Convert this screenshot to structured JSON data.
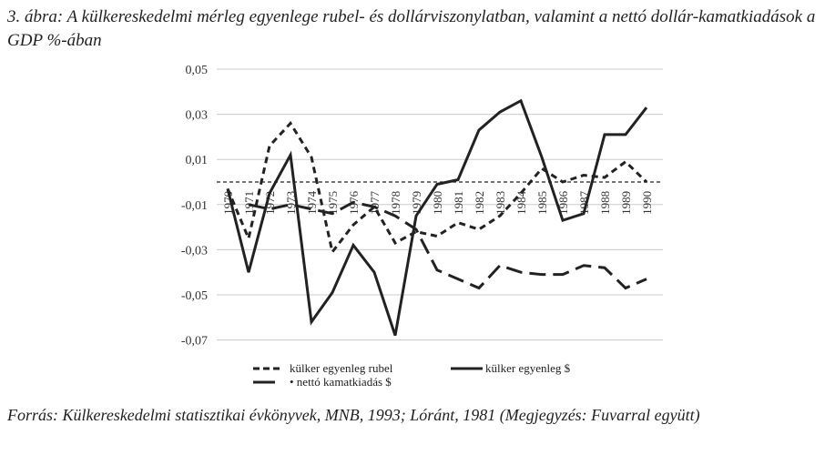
{
  "title": "3. ábra: A külkereskedelmi mérleg egyenlege rubel- és dollárviszonylatban, valamint a nettó dollár-kamatkiadások a GDP %-ában",
  "source": "Forrás: Külkereskedelmi statisztikai évkönyvek, MNB, 1993; Lóránt, 1981 (Megjegyzés: Fuvarral együtt)",
  "chart_data": {
    "type": "line",
    "title": "3. ábra: A külkereskedelmi mérleg egyenlege rubel- és dollárviszonylatban, valamint a nettó dollár-kamatkiadások a GDP %-ában",
    "x": [
      1970,
      1971,
      1972,
      1973,
      1974,
      1975,
      1976,
      1977,
      1978,
      1979,
      1980,
      1981,
      1982,
      1983,
      1984,
      1985,
      1986,
      1987,
      1988,
      1989,
      1990
    ],
    "ylim": [
      -0.07,
      0.05
    ],
    "yticks": [
      "0,05",
      "0,03",
      "0,01",
      "-0,01",
      "-0,03",
      "-0,05",
      "-0,07"
    ],
    "ytick_values": [
      0.05,
      0.03,
      0.01,
      -0.01,
      -0.03,
      -0.05,
      -0.07
    ],
    "grid": true,
    "legend_position": "bottom",
    "series": [
      {
        "name": "külker egyenleg rubel",
        "style": "short-dash",
        "values": [
          -0.003,
          -0.025,
          0.016,
          0.026,
          0.011,
          -0.031,
          -0.019,
          -0.011,
          -0.027,
          -0.022,
          -0.024,
          -0.018,
          -0.021,
          -0.015,
          -0.005,
          0.006,
          0.0,
          0.003,
          0.002,
          0.009,
          0.0
        ]
      },
      {
        "name": "külker egyenleg $",
        "style": "solid",
        "values": [
          -0.003,
          -0.04,
          -0.005,
          0.012,
          -0.062,
          -0.049,
          -0.028,
          -0.04,
          -0.068,
          -0.015,
          -0.001,
          0.001,
          0.023,
          0.031,
          0.036,
          0.011,
          -0.017,
          -0.014,
          0.021,
          0.021,
          0.033
        ]
      },
      {
        "name": "nettó kamatkiadás $",
        "style": "long-dash",
        "values": [
          null,
          -0.01,
          -0.012,
          -0.01,
          -0.012,
          -0.014,
          -0.009,
          -0.011,
          -0.015,
          -0.021,
          -0.039,
          -0.043,
          -0.047,
          -0.037,
          -0.04,
          -0.041,
          -0.041,
          -0.037,
          -0.038,
          -0.047,
          -0.043
        ]
      }
    ],
    "colors": {
      "line": "#222222",
      "grid": "#cccccc"
    }
  }
}
